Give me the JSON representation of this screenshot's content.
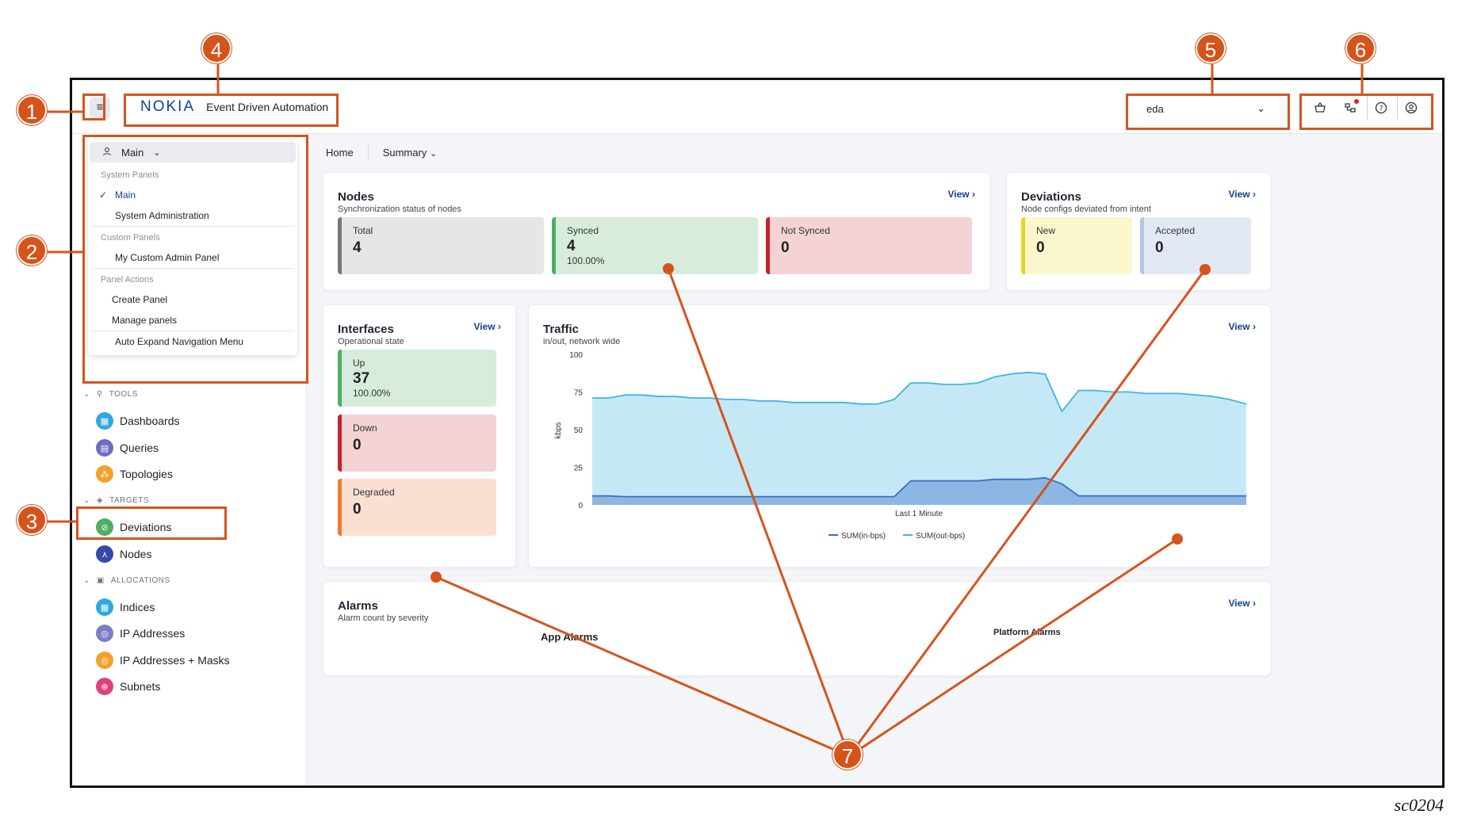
{
  "header": {
    "menu_icon": "hamburger-icon",
    "brand_logo": "NOKIA",
    "brand_name": "Event Driven Automation",
    "namespace_value": "eda",
    "icons": [
      "basket-icon",
      "transactions-icon",
      "help-icon",
      "user-icon"
    ]
  },
  "breadcrumb": {
    "home": "Home",
    "summary": "Summary"
  },
  "panel_menu": {
    "button_label": "Main",
    "system_section": "System Panels",
    "system_items": [
      "Main",
      "System Administration"
    ],
    "custom_section": "Custom Panels",
    "custom_items": [
      "My Custom Admin Panel"
    ],
    "actions_section": "Panel Actions",
    "action_items": [
      "Create Panel",
      "Manage panels"
    ],
    "auto_expand": "Auto Expand Navigation Menu"
  },
  "sidebar": {
    "tools_label": "TOOLS",
    "tools": [
      {
        "label": "Dashboards",
        "icon": "dashboard-icon",
        "color": "#2ea8e0"
      },
      {
        "label": "Queries",
        "icon": "query-icon",
        "color": "#6c6fbf"
      },
      {
        "label": "Topologies",
        "icon": "topology-icon",
        "color": "#f2a22b"
      }
    ],
    "targets_label": "TARGETS",
    "targets": [
      {
        "label": "Deviations",
        "icon": "deviation-icon",
        "color": "#4caf63"
      },
      {
        "label": "Nodes",
        "icon": "node-icon",
        "color": "#3848a8"
      }
    ],
    "allocations_label": "ALLOCATIONS",
    "allocations": [
      {
        "label": "Indices",
        "icon": "index-icon",
        "color": "#2ea8e0"
      },
      {
        "label": "IP Addresses",
        "icon": "ip-icon",
        "color": "#7b7fc4"
      },
      {
        "label": "IP Addresses + Masks",
        "icon": "ip-mask-icon",
        "color": "#f2a22b"
      },
      {
        "label": "Subnets",
        "icon": "subnet-icon",
        "color": "#e2407a"
      }
    ]
  },
  "nodes": {
    "title": "Nodes",
    "subtitle": "Synchronization status of nodes",
    "view": "View",
    "total_label": "Total",
    "total_value": "4",
    "synced_label": "Synced",
    "synced_value": "4",
    "synced_pct": "100.00%",
    "not_synced_label": "Not Synced",
    "not_synced_value": "0"
  },
  "deviations": {
    "title": "Deviations",
    "subtitle": "Node configs deviated from intent",
    "view": "View",
    "new_label": "New",
    "new_value": "0",
    "accepted_label": "Accepted",
    "accepted_value": "0"
  },
  "interfaces": {
    "title": "Interfaces",
    "subtitle": "Operational state",
    "view": "View",
    "up_label": "Up",
    "up_value": "37",
    "up_pct": "100.00%",
    "down_label": "Down",
    "down_value": "0",
    "degraded_label": "Degraded",
    "degraded_value": "0"
  },
  "traffic": {
    "title": "Traffic",
    "subtitle": "in/out, network wide",
    "view": "View"
  },
  "chart_data": {
    "type": "area",
    "ylabel": "kbps",
    "xlabel": "Last 1 Minute",
    "ylim": [
      0,
      100
    ],
    "yticks": [
      0,
      25,
      50,
      75,
      100
    ],
    "series": [
      {
        "name": "SUM(in-bps)",
        "color": "#3a6fc4",
        "values": [
          6,
          6,
          5.5,
          5.5,
          5.5,
          5.5,
          5.5,
          5.5,
          5.5,
          5.5,
          5.5,
          5.5,
          5.5,
          5.5,
          5.5,
          5.5,
          5.5,
          5.5,
          5.5,
          16,
          16,
          16,
          16,
          16,
          17,
          17,
          17,
          18,
          14,
          6,
          6,
          6,
          6,
          6,
          6,
          6,
          6,
          6,
          6,
          6
        ]
      },
      {
        "name": "SUM(out-bps)",
        "color": "#3fb4e6",
        "values": [
          71,
          71,
          73,
          73,
          72,
          72,
          71,
          71,
          70,
          70,
          69,
          69,
          68,
          68,
          68,
          68,
          67,
          67,
          70,
          81,
          81,
          80,
          80,
          81,
          85,
          87,
          88,
          87,
          62,
          76,
          76,
          75,
          75,
          74,
          74,
          74,
          73,
          72,
          70,
          67
        ]
      }
    ]
  },
  "alarms": {
    "title": "Alarms",
    "subtitle": "Alarm count by severity",
    "view": "View",
    "app_label": "App Alarms",
    "platform_label": "Platform Alarms"
  },
  "annotations": [
    "1",
    "2",
    "3",
    "4",
    "5",
    "6",
    "7"
  ],
  "caption": "sc0204",
  "colors": {
    "annotation": "#d5541c",
    "brand": "#124191",
    "total_bg": "#e6e6e6",
    "total_border": "#777777",
    "synced_bg": "#d7ecdc",
    "synced_border": "#4caf63",
    "notsynced_bg": "#f3d3d4",
    "notsynced_border": "#c8202d",
    "new_bg": "#fbf7cc",
    "new_border": "#e6d52a",
    "accepted_bg": "#e3e9f4",
    "accepted_border": "#b9c6e2",
    "degraded_bg": "#fbe0d2",
    "degraded_border": "#f07a32"
  }
}
